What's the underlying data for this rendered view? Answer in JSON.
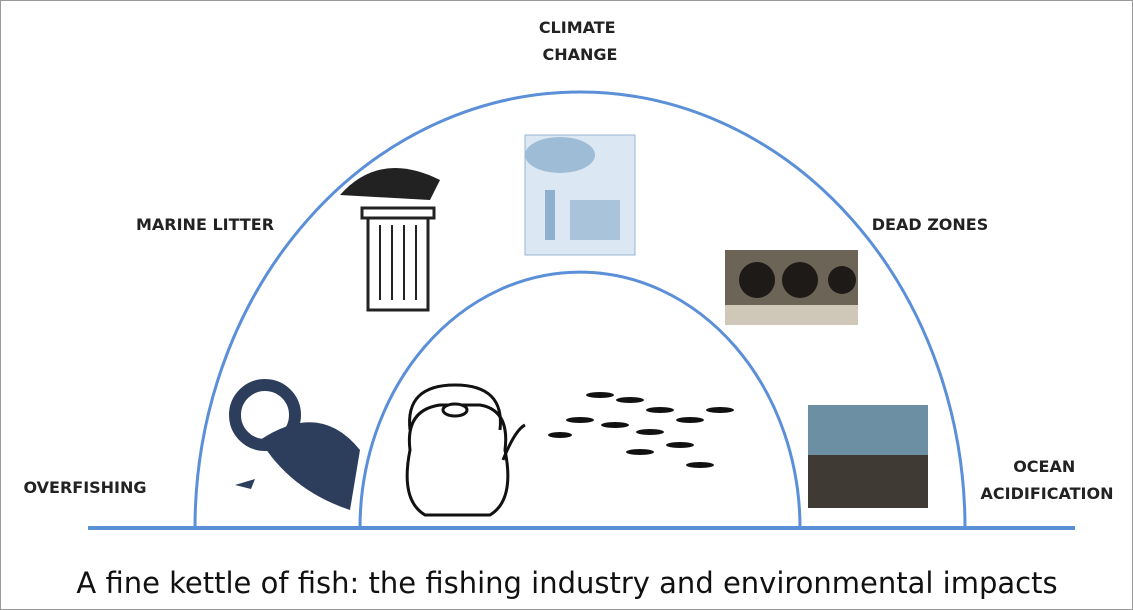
{
  "labels": {
    "climate_change": [
      "CLIMATE",
      "CHANGE"
    ],
    "marine_litter": "MARINE LITTER",
    "dead_zones": "DEAD ZONES",
    "overfishing": "OVERFISHING",
    "ocean_acidification": [
      "OCEAN",
      "ACIDIFICATION"
    ]
  },
  "caption": "A fine kettle of fish: the fishing industry and environmental impacts"
}
